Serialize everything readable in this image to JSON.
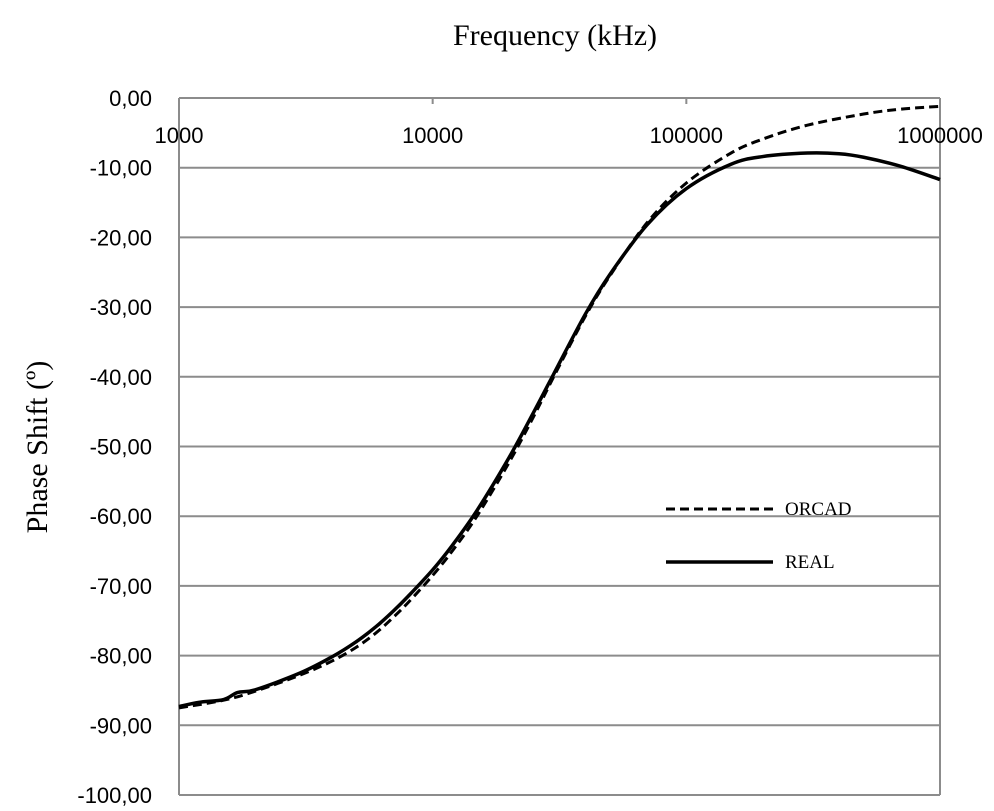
{
  "chart_data": {
    "type": "line",
    "xlabel": "Frequency (kHz)",
    "ylabel": "Phase Shift (º)",
    "x_scale": "log",
    "xlim": [
      1000,
      1000000
    ],
    "ylim": [
      -100,
      0
    ],
    "x_ticks": [
      "1000",
      "10000",
      "100000",
      "1000000"
    ],
    "y_ticks": [
      "0,00",
      "-10,00",
      "-20,00",
      "-30,00",
      "-40,00",
      "-50,00",
      "-60,00",
      "-70,00",
      "-80,00",
      "-90,00",
      "-100,00"
    ],
    "grid": true,
    "legend_position": "right",
    "series": [
      {
        "name": "ORCAD",
        "style": "dashed",
        "color": "#000000",
        "x": [
          1000,
          1500,
          2000,
          3000,
          4000,
          5000,
          6000,
          7000,
          8000,
          10000,
          12000,
          15000,
          20000,
          25000,
          30000,
          40000,
          50000,
          70000,
          100000,
          150000,
          200000,
          300000,
          500000,
          700000,
          1000000
        ],
        "y": [
          -87.5,
          -86.4,
          -85.1,
          -82.8,
          -80.8,
          -78.8,
          -76.7,
          -74.5,
          -72.4,
          -68.5,
          -64.9,
          -59.9,
          -52.3,
          -45.7,
          -40.0,
          -31.3,
          -25.5,
          -17.9,
          -12.2,
          -7.9,
          -5.9,
          -3.9,
          -2.3,
          -1.6,
          -1.2
        ]
      },
      {
        "name": "REAL",
        "style": "solid",
        "color": "#000000",
        "x": [
          1000,
          1200,
          1500,
          1700,
          2000,
          3000,
          4000,
          5000,
          6000,
          7000,
          8000,
          10000,
          12000,
          15000,
          20000,
          25000,
          30000,
          40000,
          50000,
          70000,
          100000,
          150000,
          200000,
          300000,
          400000,
          500000,
          700000,
          1000000
        ],
        "y": [
          -87.3,
          -86.7,
          -86.3,
          -85.3,
          -84.9,
          -82.5,
          -80.2,
          -78.0,
          -75.8,
          -73.6,
          -71.5,
          -67.7,
          -64.1,
          -59.1,
          -51.6,
          -45.1,
          -39.6,
          -31.0,
          -25.3,
          -18.2,
          -13.0,
          -9.5,
          -8.4,
          -7.9,
          -8.0,
          -8.5,
          -9.8,
          -11.7
        ]
      }
    ]
  }
}
